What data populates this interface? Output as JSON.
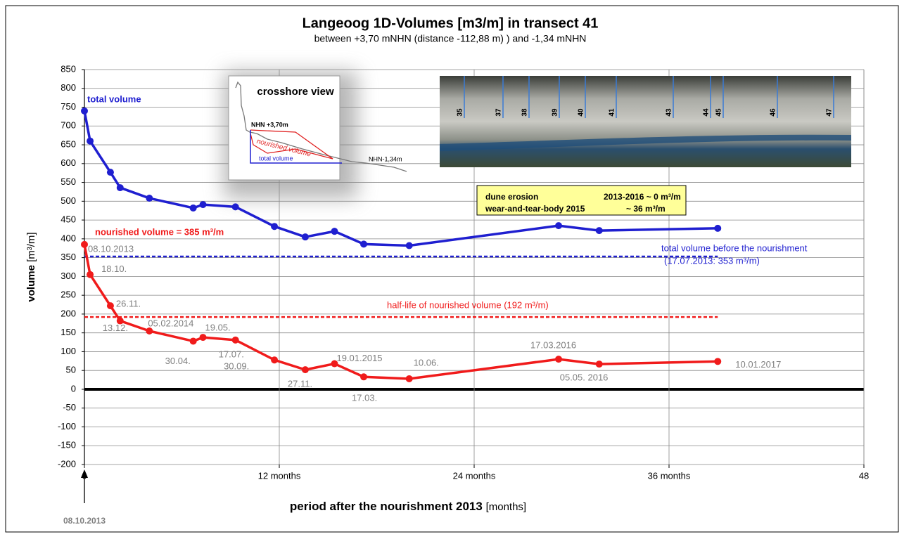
{
  "chart_data": {
    "type": "line",
    "title": "Langeoog 1D-Volumes [m3/m] in transect 41",
    "subtitle": "between +3,70 mNHN (distance -112,88 m)  ) and -1,34 mNHN",
    "y_label": "volume",
    "y_unit": "[m³/m]",
    "x_label": "period after the nourishment 2013",
    "x_unit": "[months]",
    "start_date_label": "08.10.2013",
    "xlim": [
      0,
      48
    ],
    "ylim": [
      -200,
      850
    ],
    "xticks": [
      0,
      {
        "value": 12,
        "label": "12 months"
      },
      {
        "value": 24,
        "label": "24 months"
      },
      {
        "value": 36,
        "label": "36 months"
      },
      48
    ],
    "yticks": [
      -200,
      -150,
      -100,
      -50,
      0,
      50,
      100,
      150,
      200,
      250,
      300,
      350,
      400,
      450,
      500,
      550,
      600,
      650,
      700,
      750,
      800,
      850
    ],
    "grid": true,
    "x": [
      0,
      0.35,
      1.6,
      2.2,
      4,
      6.7,
      7.3,
      9.3,
      11.7,
      13.6,
      15.4,
      17.2,
      20,
      29.2,
      31.7,
      39
    ],
    "series": [
      {
        "name": "total volume",
        "color": "#1f1fd0",
        "values": [
          740,
          660,
          577,
          536,
          508,
          482,
          491,
          485,
          433,
          405,
          420,
          386,
          382,
          435,
          422,
          428
        ]
      },
      {
        "name": "nourished volume = 385 m³/m",
        "color": "#f01b1b",
        "values": [
          385,
          305,
          222,
          182,
          155,
          128,
          138,
          131,
          78,
          52,
          68,
          33,
          28,
          80,
          67,
          74
        ]
      }
    ],
    "point_labels": [
      "08.10.2013",
      "18.10.",
      "26.11.",
      "13.12.",
      "05.02.2014",
      "30.04.",
      "19.05.",
      "17.07.",
      "30.09.",
      "27.11.",
      "19.01.2015",
      "17.03.",
      "10.06.",
      "17.03.2016",
      "05.05. 2016",
      "10.01.2017"
    ],
    "reference_lines": [
      {
        "value": 353,
        "color": "#1f1fd0",
        "labels": [
          "total volume before the nourishment",
          "(17.07.2013: 353 m³/m)"
        ]
      },
      {
        "value": 192,
        "color": "#f01b1b",
        "labels": [
          "half-life of nourished volume (192 m³/m)"
        ]
      }
    ],
    "info_box": [
      [
        "dune erosion",
        "2013-2016  ~ 0 m³/m"
      ],
      [
        "wear-and-tear-body 2015",
        "~ 36 m³/m"
      ]
    ],
    "inset": {
      "title": "crosshore view",
      "top_label": "NHN +3,70m",
      "nourished_label": "nourished volume",
      "total_label": "total volume",
      "bottom_label": "NHN-1,34m"
    },
    "photo_transects": [
      "35",
      "37",
      "38",
      "39",
      "40",
      "41",
      "43",
      "44",
      "45",
      "46",
      "47"
    ]
  }
}
